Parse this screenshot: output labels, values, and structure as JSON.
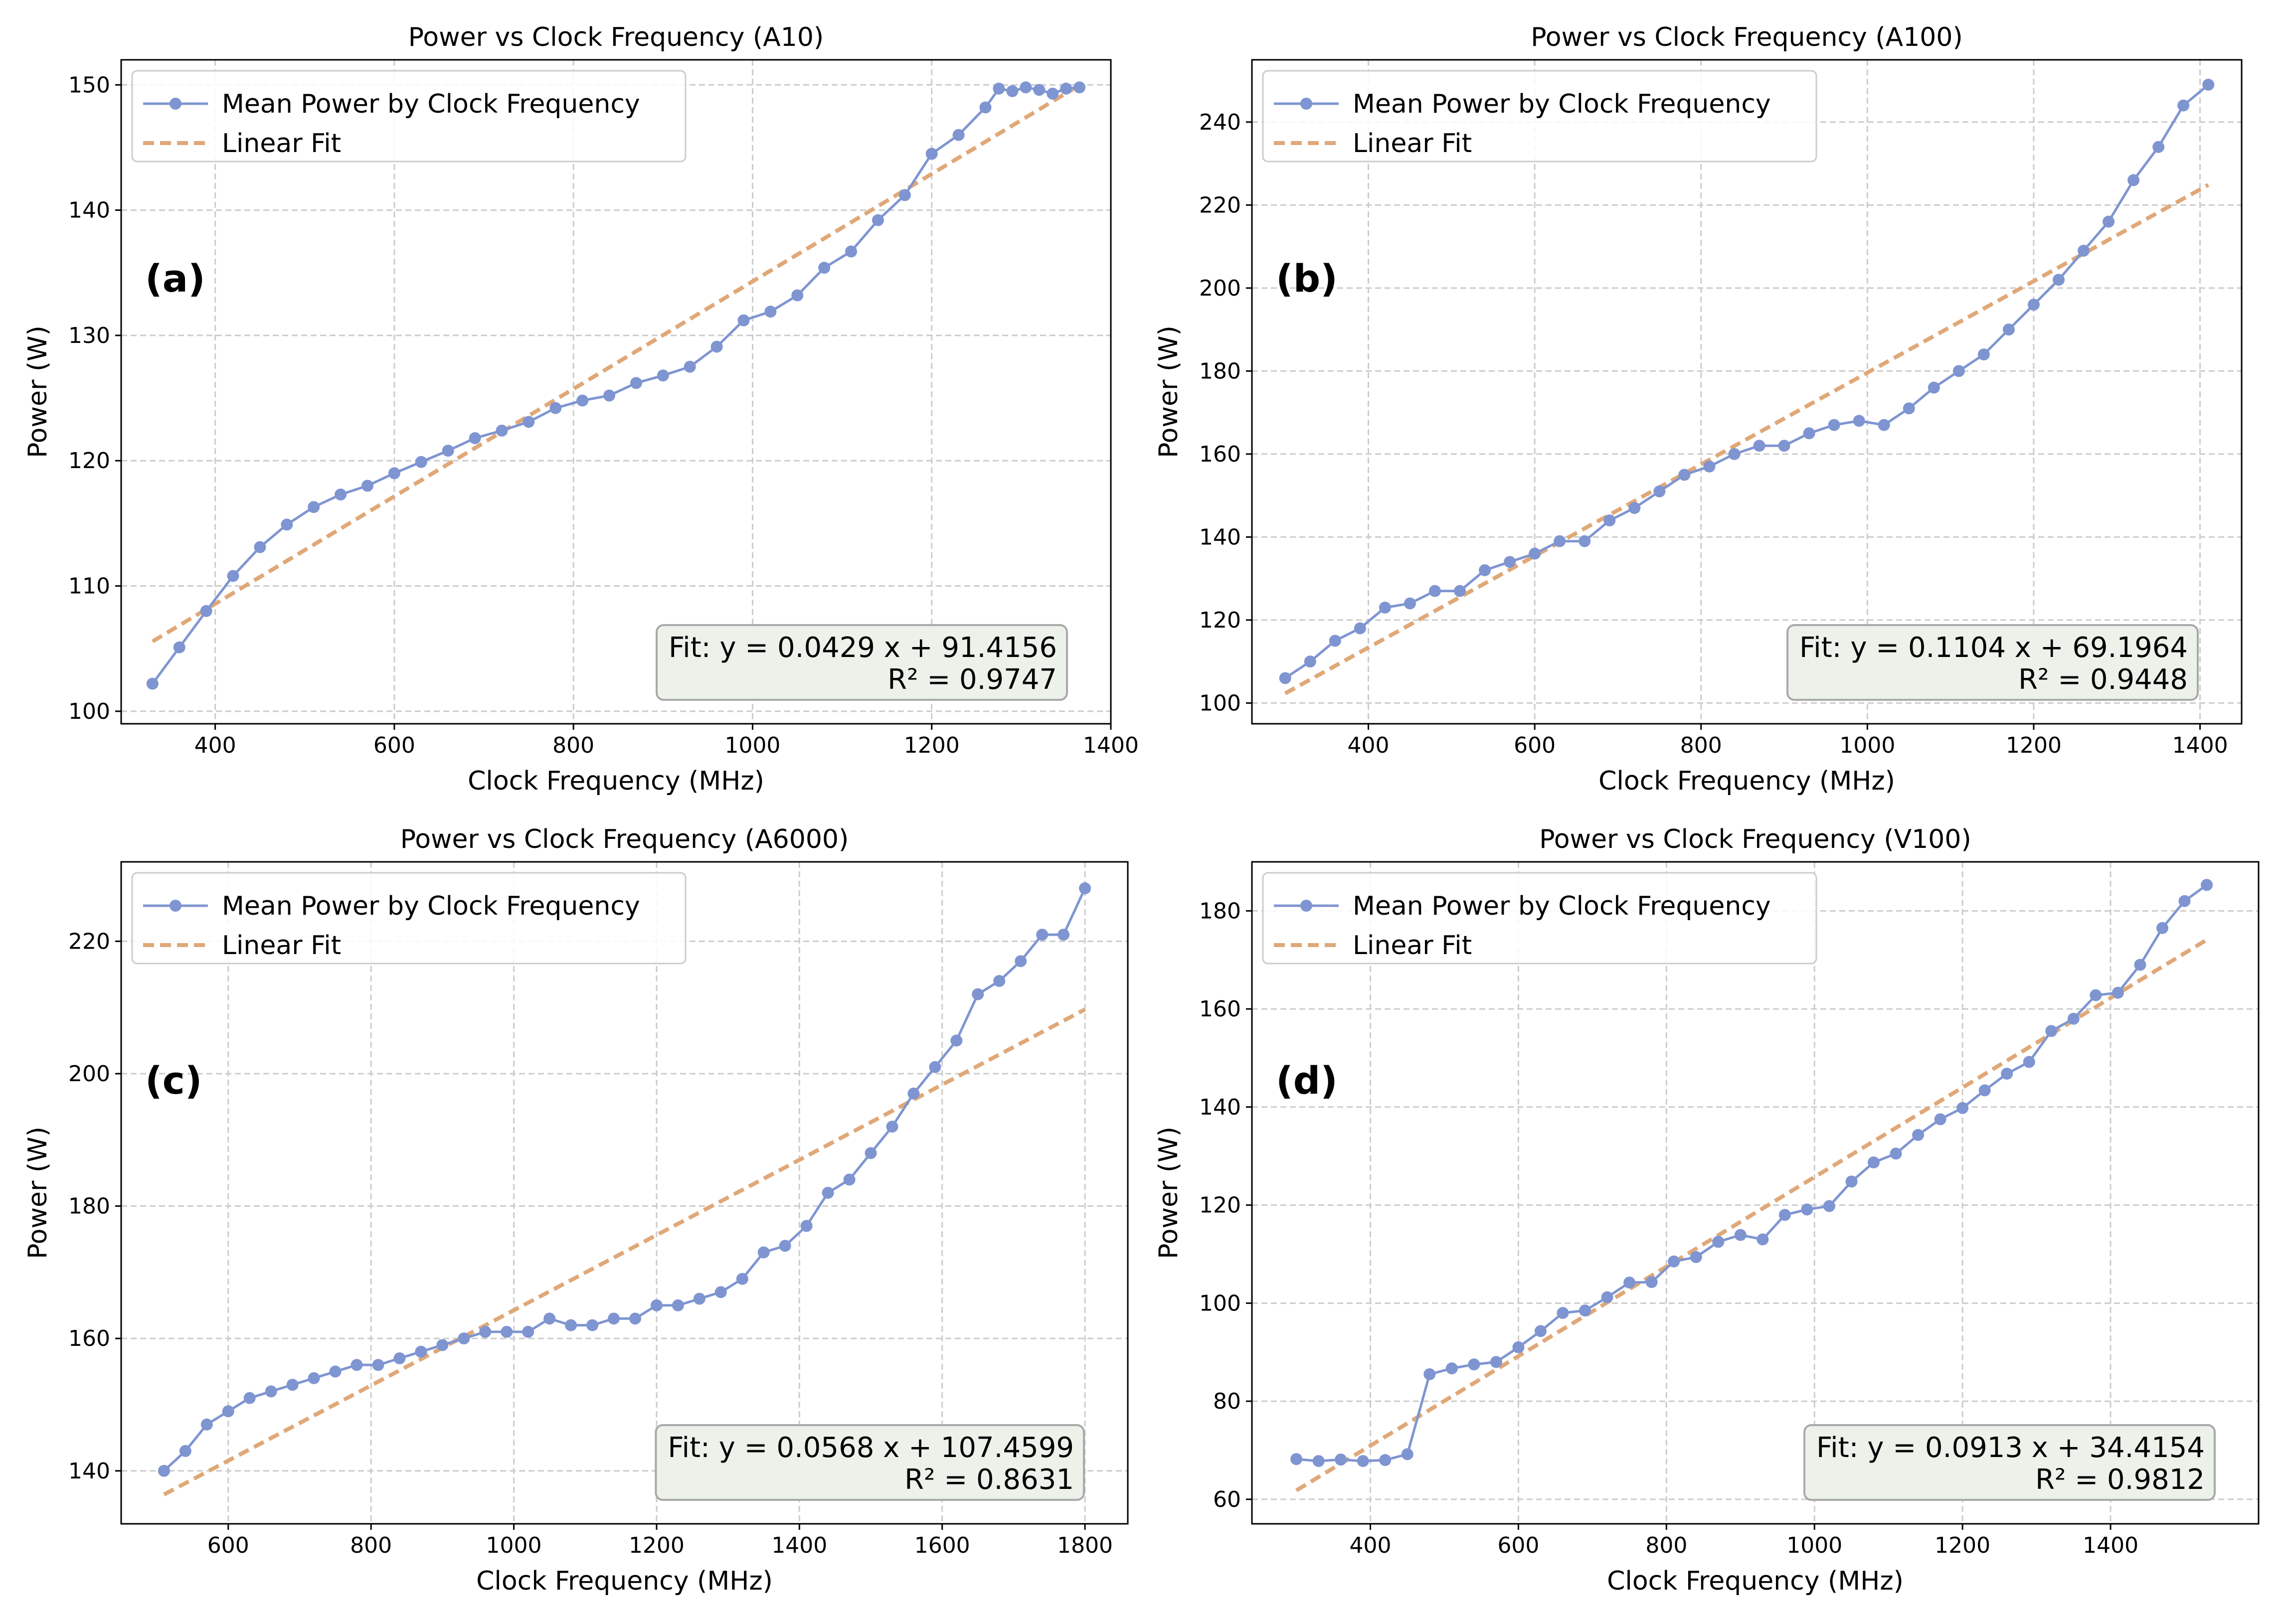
{
  "colors": {
    "series": "#7f95d1",
    "fit": "#e0a878",
    "grid": "#cccccc",
    "fit_box_fill": "#ecf1ea",
    "fit_box_stroke": "#a9a9a9",
    "legend_stroke": "#cccccc"
  },
  "chart_data": [
    {
      "type": "line",
      "panel_label": "(a)",
      "title": "Power vs Clock Frequency (A10)",
      "xlabel": "Clock Frequency (MHz)",
      "ylabel": "Power (W)",
      "xlim": [
        295,
        1400
      ],
      "ylim": [
        99,
        152
      ],
      "xticks": [
        400,
        600,
        800,
        1000,
        1200,
        1400
      ],
      "yticks": [
        100,
        110,
        120,
        130,
        140,
        150
      ],
      "grid": true,
      "legend_position": "top-left",
      "fit_box_position": "bottom-right",
      "series": [
        {
          "name": "Mean Power by Clock Frequency",
          "x": [
            330,
            360,
            390,
            420,
            450,
            480,
            510,
            540,
            570,
            600,
            630,
            660,
            690,
            720,
            750,
            780,
            810,
            840,
            870,
            900,
            930,
            960,
            990,
            1020,
            1050,
            1080,
            1110,
            1140,
            1170,
            1200,
            1230,
            1260,
            1275,
            1290,
            1305,
            1320,
            1335,
            1350,
            1365
          ],
          "values": [
            102.2,
            105.1,
            108.0,
            110.8,
            113.1,
            114.9,
            116.3,
            117.3,
            118.0,
            119.0,
            119.9,
            120.8,
            121.8,
            122.4,
            123.1,
            124.2,
            124.8,
            125.2,
            126.2,
            126.8,
            127.5,
            129.1,
            131.2,
            131.9,
            133.2,
            135.4,
            136.7,
            139.2,
            141.2,
            144.5,
            146.0,
            148.2,
            149.7,
            149.5,
            149.8,
            149.6,
            149.3,
            149.7,
            149.8
          ]
        },
        {
          "name": "Linear Fit",
          "x": [
            330,
            1365
          ],
          "values": [
            105.57,
            149.97
          ]
        }
      ],
      "fit_equation": "Fit: y = 0.0429 x + 91.4156",
      "r_squared": "R² = 0.9747"
    },
    {
      "type": "line",
      "panel_label": "(b)",
      "title": "Power vs Clock Frequency (A100)",
      "xlabel": "Clock Frequency (MHz)",
      "ylabel": "Power (W)",
      "xlim": [
        260,
        1450
      ],
      "ylim": [
        95,
        255
      ],
      "xticks": [
        400,
        600,
        800,
        1000,
        1200,
        1400
      ],
      "yticks": [
        100,
        120,
        140,
        160,
        180,
        200,
        220,
        240
      ],
      "grid": true,
      "legend_position": "top-left",
      "fit_box_position": "bottom-right",
      "series": [
        {
          "name": "Mean Power by Clock Frequency",
          "x": [
            300,
            330,
            360,
            390,
            420,
            450,
            480,
            510,
            540,
            570,
            600,
            630,
            660,
            690,
            720,
            750,
            780,
            810,
            840,
            870,
            900,
            930,
            960,
            990,
            1020,
            1050,
            1080,
            1110,
            1140,
            1170,
            1200,
            1230,
            1260,
            1290,
            1320,
            1350,
            1380,
            1410
          ],
          "values": [
            106,
            110,
            115,
            118,
            123,
            124,
            127,
            127,
            132,
            134,
            136,
            139,
            139,
            144,
            147,
            151,
            155,
            157,
            160,
            162,
            162,
            165,
            167,
            168,
            167,
            171,
            176,
            180,
            184,
            190,
            196,
            202,
            209,
            216,
            226,
            234,
            244,
            249
          ]
        },
        {
          "name": "Linear Fit",
          "x": [
            300,
            1410
          ],
          "values": [
            102.32,
            224.86
          ]
        }
      ],
      "fit_equation": "Fit: y = 0.1104 x + 69.1964",
      "r_squared": "R² = 0.9448"
    },
    {
      "type": "line",
      "panel_label": "(c)",
      "title": "Power vs Clock Frequency (A6000)",
      "xlabel": "Clock Frequency (MHz)",
      "ylabel": "Power (W)",
      "xlim": [
        450,
        1860
      ],
      "ylim": [
        132,
        232
      ],
      "xticks": [
        600,
        800,
        1000,
        1200,
        1400,
        1600,
        1800
      ],
      "yticks": [
        140,
        160,
        180,
        200,
        220
      ],
      "grid": true,
      "legend_position": "top-left",
      "fit_box_position": "bottom-right",
      "series": [
        {
          "name": "Mean Power by Clock Frequency",
          "x": [
            510,
            540,
            570,
            600,
            630,
            660,
            690,
            720,
            750,
            780,
            810,
            840,
            870,
            900,
            930,
            960,
            990,
            1020,
            1050,
            1080,
            1110,
            1140,
            1170,
            1200,
            1230,
            1260,
            1290,
            1320,
            1350,
            1380,
            1410,
            1440,
            1470,
            1500,
            1530,
            1560,
            1590,
            1620,
            1650,
            1680,
            1710,
            1740,
            1770,
            1800
          ],
          "values": [
            140,
            143,
            147,
            149,
            151,
            152,
            153,
            154,
            155,
            156,
            156,
            157,
            158,
            159,
            160,
            161,
            161,
            161,
            163,
            162,
            162,
            163,
            163,
            165,
            165,
            166,
            167,
            169,
            173,
            174,
            177,
            182,
            184,
            188,
            192,
            197,
            201,
            205,
            212,
            214,
            217,
            221,
            221,
            228
          ]
        },
        {
          "name": "Linear Fit",
          "x": [
            510,
            1800
          ],
          "values": [
            136.43,
            209.7
          ]
        }
      ],
      "fit_equation": "Fit: y = 0.0568 x + 107.4599",
      "r_squared": "R² = 0.8631"
    },
    {
      "type": "line",
      "panel_label": "(d)",
      "title": "Power vs Clock Frequency (V100)",
      "xlabel": "Clock Frequency (MHz)",
      "ylabel": "Power (W)",
      "xlim": [
        240,
        1600
      ],
      "ylim": [
        55,
        190
      ],
      "xticks": [
        400,
        600,
        800,
        1000,
        1200,
        1400
      ],
      "yticks": [
        60,
        80,
        100,
        120,
        140,
        160,
        180
      ],
      "grid": true,
      "legend_position": "top-left",
      "fit_box_position": "bottom-right",
      "series": [
        {
          "name": "Mean Power by Clock Frequency",
          "x": [
            300,
            330,
            360,
            390,
            420,
            450,
            480,
            510,
            540,
            570,
            600,
            630,
            660,
            690,
            720,
            750,
            780,
            810,
            840,
            870,
            900,
            930,
            960,
            990,
            1020,
            1050,
            1080,
            1110,
            1140,
            1170,
            1200,
            1230,
            1260,
            1290,
            1320,
            1350,
            1380,
            1410,
            1440,
            1470,
            1500,
            1530
          ],
          "values": [
            68.2,
            67.8,
            68.1,
            67.8,
            68.0,
            69.2,
            85.5,
            86.7,
            87.5,
            88.0,
            91.0,
            94.3,
            98.0,
            98.5,
            101.2,
            104.2,
            104.3,
            108.5,
            109.4,
            112.5,
            113.9,
            113.0,
            118.0,
            119.1,
            119.8,
            124.8,
            128.7,
            130.5,
            134.3,
            137.5,
            139.8,
            143.4,
            146.8,
            149.2,
            155.5,
            158.0,
            162.8,
            163.3,
            169.0,
            176.5,
            182.0,
            185.3
          ]
        },
        {
          "name": "Linear Fit",
          "x": [
            300,
            1530
          ],
          "values": [
            61.8,
            174.1
          ]
        }
      ],
      "fit_equation": "Fit: y = 0.0913 x + 34.4154",
      "r_squared": "R² = 0.9812"
    }
  ]
}
